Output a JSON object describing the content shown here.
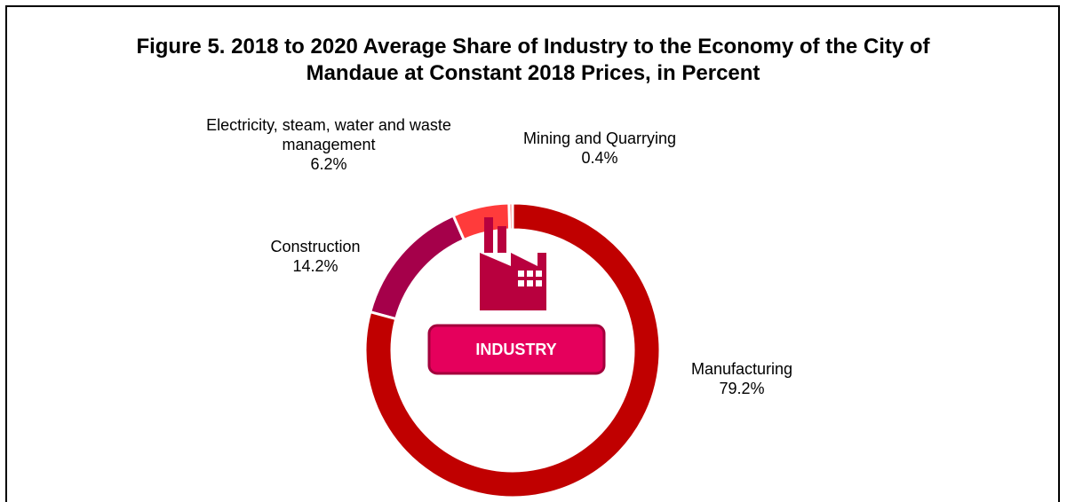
{
  "chart_data": {
    "type": "donut",
    "title": "Figure 5. 2018 to 2020 Average Share of Industry to the Economy of the City of Mandaue at Constant 2018 Prices, in Percent",
    "center_label": "INDUSTRY",
    "categories": [
      "Manufacturing",
      "Construction",
      "Electricity, steam, water and waste management",
      "Mining and Quarrying"
    ],
    "values": [
      79.2,
      14.2,
      6.2,
      0.4
    ],
    "value_labels": [
      "79.2%",
      "14.2%",
      "6.2%",
      "0.4%"
    ],
    "colors": [
      "#c00000",
      "#a5004a",
      "#ff3b3b",
      "#ff7070"
    ]
  }
}
